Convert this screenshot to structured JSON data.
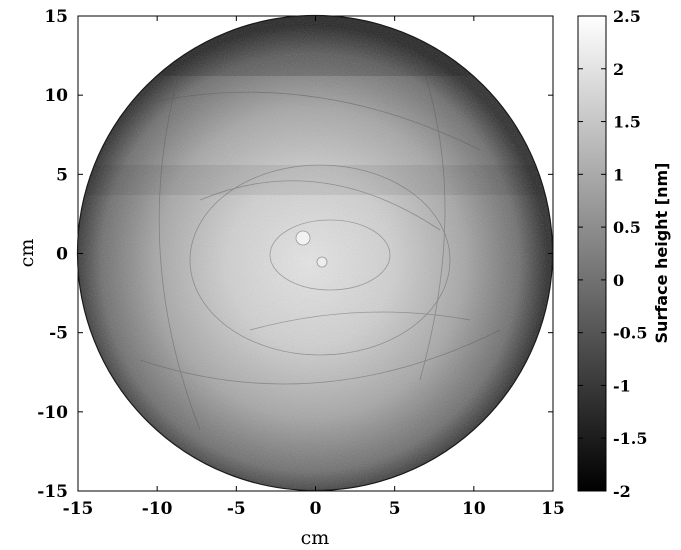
{
  "chart_data": {
    "type": "heatmap",
    "title": "",
    "xlabel": "cm",
    "ylabel": "cm",
    "xlim": [
      -15,
      15
    ],
    "ylim": [
      -15,
      15
    ],
    "xticks": [
      "-15",
      "-10",
      "-5",
      "0",
      "5",
      "10",
      "15"
    ],
    "yticks": [
      "15",
      "10",
      "5",
      "0",
      "-5",
      "-10",
      "-15"
    ],
    "shape": "circular aperture, radius 15 cm",
    "colormap": "gray",
    "colorbar": {
      "label": "Surface height [nm]",
      "range": [
        -2,
        2.5
      ],
      "ticks": [
        "2.5",
        "2",
        "1.5",
        "1",
        "0.5",
        "0",
        "-0.5",
        "-1",
        "-1.5",
        "-2"
      ]
    },
    "grid": false
  }
}
